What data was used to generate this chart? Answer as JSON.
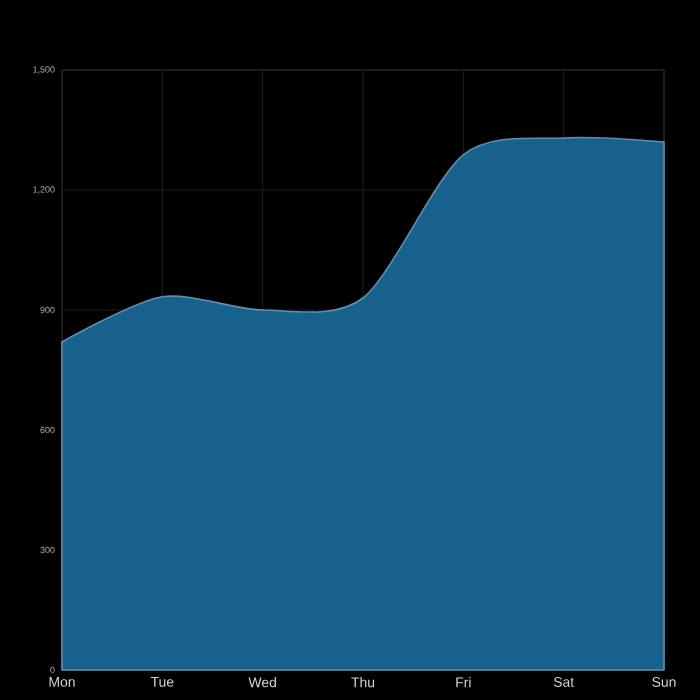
{
  "chart_data": {
    "type": "area",
    "categories": [
      "Mon",
      "Tue",
      "Wed",
      "Thu",
      "Fri",
      "Sat",
      "Sun"
    ],
    "series": [
      {
        "color": "#17618d",
        "values": [
          820,
          933,
          900,
          930,
          1288,
          1330,
          1320
        ]
      }
    ],
    "ylim": [
      0,
      1500
    ],
    "yticks": [
      0,
      300,
      600,
      900,
      {
        "value": 1200,
        "label": "1,200"
      },
      {
        "value": 1500,
        "label": "1,500"
      }
    ],
    "grid": true
  }
}
